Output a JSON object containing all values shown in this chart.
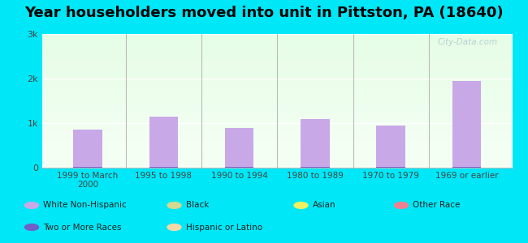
{
  "title": "Year householders moved into unit in Pittston, PA (18640)",
  "categories": [
    "1999 to March\n2000",
    "1995 to 1998",
    "1990 to 1994",
    "1980 to 1989",
    "1970 to 1979",
    "1969 or earlier"
  ],
  "series": {
    "White Non-Hispanic": {
      "values": [
        850,
        1150,
        900,
        1100,
        950,
        1950
      ],
      "color": "#c9a8e8"
    },
    "Two or More Races": {
      "values": [
        10,
        10,
        10,
        10,
        10,
        10
      ],
      "color": "#7060c8"
    },
    "Black": {
      "values": [
        0,
        0,
        0,
        0,
        0,
        0
      ],
      "color": "#d4d890"
    },
    "Hispanic or Latino": {
      "values": [
        0,
        0,
        0,
        0,
        0,
        0
      ],
      "color": "#f8d8a8"
    },
    "Asian": {
      "values": [
        0,
        0,
        0,
        0,
        0,
        0
      ],
      "color": "#f0f060"
    },
    "Other Race": {
      "values": [
        0,
        0,
        0,
        0,
        0,
        0
      ],
      "color": "#f08090"
    }
  },
  "ylim": [
    0,
    3000
  ],
  "yticks": [
    0,
    1000,
    2000,
    3000
  ],
  "ytick_labels": [
    "0",
    "1k",
    "2k",
    "3k"
  ],
  "background_outer": "#00e8f8",
  "title_fontsize": 13,
  "bar_width": 0.38,
  "watermark": "City-Data.com"
}
